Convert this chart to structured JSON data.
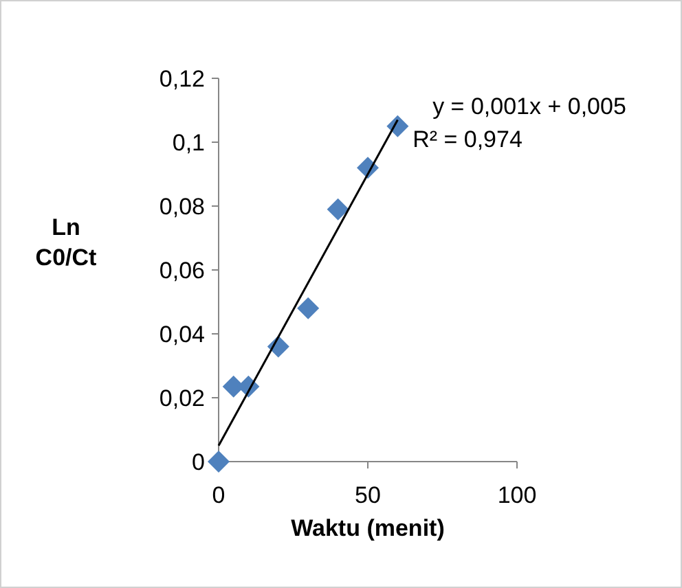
{
  "chart_data": {
    "type": "scatter",
    "xlabel": "Waktu (menit)",
    "ylabel": "Ln C0/Ct",
    "x": [
      0,
      5,
      10,
      20,
      30,
      40,
      50,
      60
    ],
    "series": [
      {
        "color": "#4f81bd",
        "marker": "diamond",
        "values": [
          0,
          0.0235,
          0.0235,
          0.036,
          0.048,
          0.079,
          0.092,
          0.105
        ]
      },
      {
        "type": "line",
        "color": "#000000",
        "x": [
          0,
          60
        ],
        "values": [
          0.005,
          0.107
        ]
      }
    ],
    "xlim": [
      0,
      100
    ],
    "xticks": [
      0,
      50,
      100
    ],
    "ylim": [
      0,
      0.12
    ],
    "yticks": [
      0,
      {
        "value": 0.02,
        "label": "0,02"
      },
      {
        "value": 0.04,
        "label": "0,04"
      },
      {
        "value": 0.06,
        "label": "0,06"
      },
      {
        "value": 0.08,
        "label": "0,08"
      },
      {
        "value": 0.1,
        "label": "0,1"
      },
      {
        "value": 0.12,
        "label": "0,12"
      }
    ],
    "annotations": [
      "y = 0,001x + 0,005",
      "R² = 0,974"
    ],
    "grid": false
  }
}
